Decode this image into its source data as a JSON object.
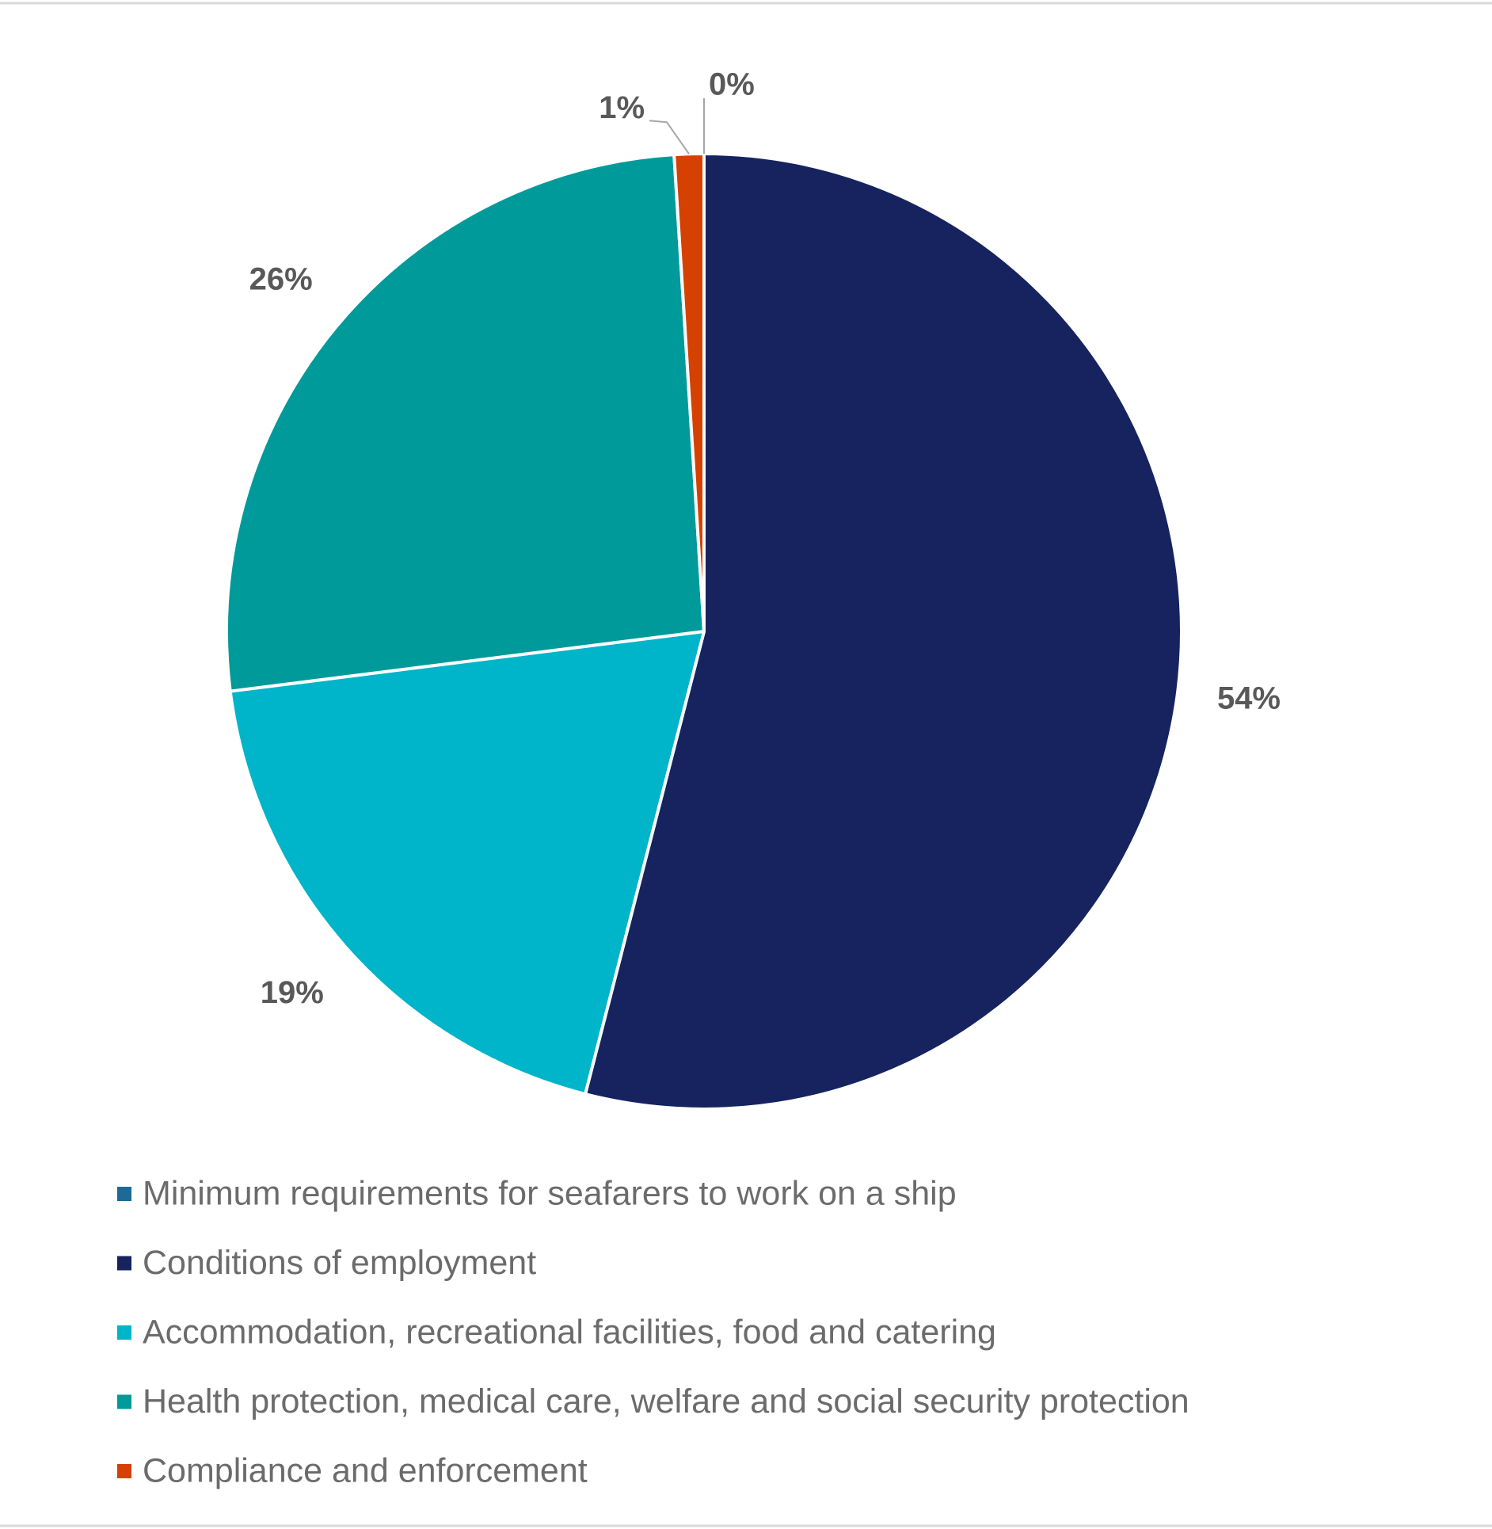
{
  "chart_data": {
    "type": "pie",
    "categories": [
      "Minimum requirements for seafarers to work on a ship",
      "Conditions of employment",
      "Accommodation, recreational facilities, food and catering",
      "Health protection, medical care, welfare and social security protection",
      "Compliance and enforcement"
    ],
    "values": [
      0,
      54,
      19,
      26,
      1
    ],
    "value_labels": [
      "0%",
      "54%",
      "19%",
      "26%",
      "1%"
    ],
    "colors": [
      "#1d6a99",
      "#16235f",
      "#00b4c9",
      "#009a9a",
      "#d54100"
    ],
    "legend": "bottom"
  }
}
